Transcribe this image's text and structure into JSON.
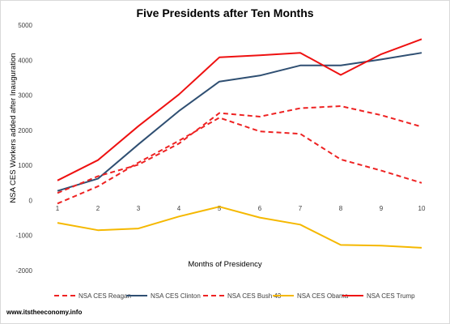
{
  "chart_data": {
    "type": "line",
    "title": "Five Presidents after Ten Months",
    "xlabel": "Months of Presidency",
    "ylabel": "NSA CES Workers added after Inauguration",
    "x": [
      1,
      2,
      3,
      4,
      5,
      6,
      7,
      8,
      9,
      10
    ],
    "xticks": [
      "1",
      "2",
      "3",
      "4",
      "5",
      "6",
      "7",
      "8",
      "9",
      "10"
    ],
    "yticks": [
      "5000",
      "4000",
      "3000",
      "2000",
      "1000",
      "0",
      "-1000",
      "-2000"
    ],
    "ylim": [
      -2000,
      5000
    ],
    "grid": false,
    "legend_position": "bottom",
    "series": [
      {
        "name": "NSA CES Reagan",
        "color": "#ee2222",
        "dash": "dashed",
        "values": [
          -90,
          400,
          1080,
          1700,
          2360,
          1970,
          1900,
          1170,
          850,
          500
        ]
      },
      {
        "name": "NSA CES Clinton",
        "color": "#2f4f72",
        "dash": "solid",
        "values": [
          270,
          620,
          1600,
          2550,
          3390,
          3560,
          3850,
          3850,
          4020,
          4210
        ]
      },
      {
        "name": "NSA CES Bush 43",
        "color": "#ee2222",
        "dash": "dashed",
        "values": [
          210,
          690,
          1020,
          1620,
          2490,
          2390,
          2630,
          2690,
          2430,
          2100
        ]
      },
      {
        "name": "NSA CES Obama",
        "color": "#f5b800",
        "dash": "solid",
        "values": [
          -640,
          -850,
          -800,
          -460,
          -180,
          -490,
          -690,
          -1270,
          -1290,
          -1350
        ]
      },
      {
        "name": "NSA CES Trump",
        "color": "#ee1111",
        "dash": "solid",
        "values": [
          570,
          1150,
          2120,
          3020,
          4080,
          4140,
          4210,
          3580,
          4170,
          4600
        ]
      }
    ]
  },
  "footer": {
    "website": "www.itstheeconomy.info"
  }
}
